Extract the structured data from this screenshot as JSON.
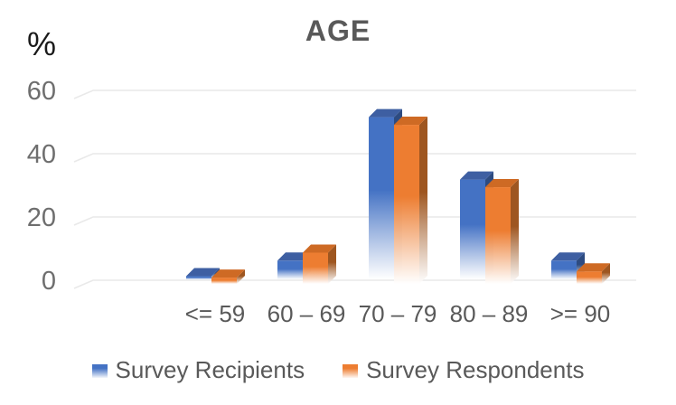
{
  "chart_data": {
    "type": "bar",
    "title": "AGE",
    "ylabel": "%",
    "categories": [
      "<= 59",
      "60 – 69",
      "70 – 79",
      "80 – 89",
      ">= 90"
    ],
    "series": [
      {
        "name": "Survey Recipients",
        "values": [
          1,
          6,
          52,
          32,
          6
        ],
        "color": "#4472C4",
        "top_color": "#3E5FA2",
        "side_color": "#2D4B81"
      },
      {
        "name": "Survey Respondents",
        "values": [
          2,
          10,
          51,
          31,
          4
        ],
        "color": "#ED7D31",
        "top_color": "#CE6A24",
        "side_color": "#9E5620"
      }
    ],
    "y_ticks": [
      0,
      20,
      40,
      60
    ],
    "ylim": [
      0,
      60
    ],
    "grid": true,
    "legend_position": "bottom",
    "style": "3d-columns-fading-to-white-at-base"
  },
  "colors": {
    "title": "#595959",
    "tick_label": "#6E6E6E",
    "category_label": "#595959",
    "legend_text": "#595959",
    "gridline": "#E9E9E9",
    "background": "#FFFFFF"
  }
}
